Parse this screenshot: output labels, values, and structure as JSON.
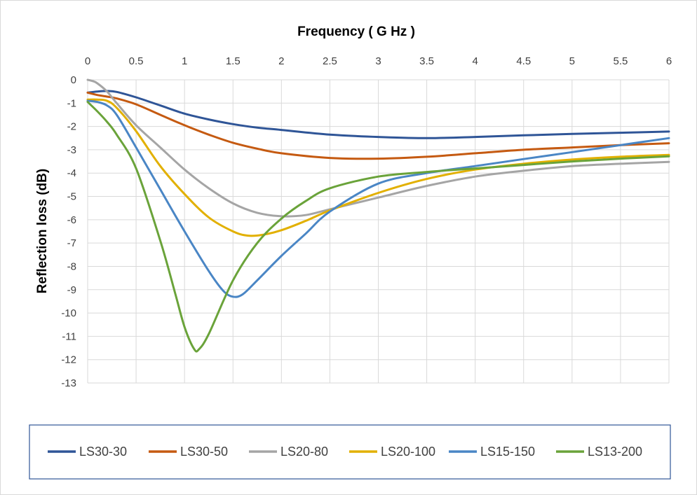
{
  "chart_data": {
    "type": "line",
    "title": "Frequency ( G Hz )",
    "xlabel": "Frequency ( G Hz )",
    "ylabel": "Reflection loss (dB)",
    "xlim": [
      0,
      6
    ],
    "ylim": [
      -13,
      0
    ],
    "x_axis_position": "top",
    "grid": true,
    "legend_position": "bottom",
    "x_ticks": [
      "0",
      "0.5",
      "1",
      "1.5",
      "2",
      "2.5",
      "3",
      "3.5",
      "4",
      "4.5",
      "5",
      "5.5",
      "6"
    ],
    "y_ticks": [
      "0",
      "-1",
      "-2",
      "-3",
      "-4",
      "-5",
      "-6",
      "-7",
      "-8",
      "-9",
      "-10",
      "-11",
      "-12",
      "-13"
    ],
    "x_tick_values": [
      0,
      0.5,
      1,
      1.5,
      2,
      2.5,
      3,
      3.5,
      4,
      4.5,
      5,
      5.5,
      6
    ],
    "y_tick_values": [
      0,
      -1,
      -2,
      -3,
      -4,
      -5,
      -6,
      -7,
      -8,
      -9,
      -10,
      -11,
      -12,
      -13
    ],
    "series": [
      {
        "name": "LS30-30",
        "color": "#2f5597",
        "x": [
          0,
          0.1,
          0.2,
          0.3,
          0.5,
          0.75,
          1,
          1.25,
          1.5,
          1.75,
          2,
          2.5,
          3,
          3.5,
          4,
          4.5,
          5,
          5.5,
          6
        ],
        "y": [
          -0.55,
          -0.5,
          -0.48,
          -0.52,
          -0.75,
          -1.1,
          -1.45,
          -1.7,
          -1.9,
          -2.05,
          -2.15,
          -2.35,
          -2.45,
          -2.5,
          -2.45,
          -2.38,
          -2.32,
          -2.27,
          -2.22
        ]
      },
      {
        "name": "LS30-50",
        "color": "#c55a11",
        "x": [
          0,
          0.1,
          0.2,
          0.3,
          0.5,
          0.75,
          1,
          1.25,
          1.5,
          1.75,
          2,
          2.5,
          3,
          3.5,
          4,
          4.5,
          5,
          5.5,
          6
        ],
        "y": [
          -0.55,
          -0.65,
          -0.72,
          -0.8,
          -1.05,
          -1.5,
          -1.95,
          -2.35,
          -2.7,
          -2.95,
          -3.15,
          -3.35,
          -3.38,
          -3.3,
          -3.15,
          -3.0,
          -2.9,
          -2.8,
          -2.72
        ]
      },
      {
        "name": "LS20-80",
        "color": "#a5a5a5",
        "x": [
          0,
          0.05,
          0.1,
          0.2,
          0.3,
          0.5,
          0.75,
          1,
          1.25,
          1.5,
          1.75,
          2,
          2.25,
          2.5,
          3,
          3.5,
          4,
          4.5,
          5,
          5.5,
          6
        ],
        "y": [
          0,
          -0.05,
          -0.15,
          -0.5,
          -1.0,
          -1.95,
          -2.9,
          -3.85,
          -4.65,
          -5.3,
          -5.7,
          -5.85,
          -5.8,
          -5.55,
          -5.05,
          -4.55,
          -4.15,
          -3.9,
          -3.7,
          -3.6,
          -3.52
        ]
      },
      {
        "name": "LS20-100",
        "color": "#e2b000",
        "x": [
          0,
          0.1,
          0.2,
          0.3,
          0.5,
          0.75,
          1,
          1.25,
          1.5,
          1.65,
          1.8,
          2,
          2.25,
          2.5,
          3,
          3.5,
          4,
          4.5,
          5,
          5.5,
          6
        ],
        "y": [
          -0.85,
          -0.85,
          -0.9,
          -1.2,
          -2.2,
          -3.7,
          -4.9,
          -5.9,
          -6.5,
          -6.68,
          -6.65,
          -6.45,
          -6.05,
          -5.6,
          -4.85,
          -4.25,
          -3.85,
          -3.6,
          -3.42,
          -3.3,
          -3.22
        ]
      },
      {
        "name": "LS15-150",
        "color": "#4a86c5",
        "x": [
          0,
          0.1,
          0.2,
          0.3,
          0.5,
          0.75,
          1,
          1.25,
          1.4,
          1.5,
          1.6,
          1.75,
          2,
          2.25,
          2.5,
          3,
          3.5,
          4,
          4.5,
          5,
          5.5,
          6
        ],
        "y": [
          -0.9,
          -0.95,
          -1.1,
          -1.5,
          -2.9,
          -4.7,
          -6.5,
          -8.2,
          -9.05,
          -9.3,
          -9.2,
          -8.6,
          -7.55,
          -6.6,
          -5.65,
          -4.45,
          -4.0,
          -3.7,
          -3.4,
          -3.1,
          -2.8,
          -2.5
        ]
      },
      {
        "name": "LS13-200",
        "color": "#6aa33a",
        "x": [
          0,
          0.1,
          0.2,
          0.3,
          0.5,
          0.75,
          0.9,
          1,
          1.1,
          1.15,
          1.25,
          1.5,
          1.75,
          2,
          2.25,
          2.5,
          3,
          3.5,
          4,
          4.5,
          5,
          5.5,
          6
        ],
        "y": [
          -0.95,
          -1.35,
          -1.8,
          -2.35,
          -3.8,
          -6.9,
          -9.1,
          -10.6,
          -11.55,
          -11.55,
          -10.9,
          -8.6,
          -7.0,
          -5.95,
          -5.2,
          -4.65,
          -4.15,
          -3.95,
          -3.8,
          -3.65,
          -3.5,
          -3.38,
          -3.28
        ]
      }
    ]
  }
}
